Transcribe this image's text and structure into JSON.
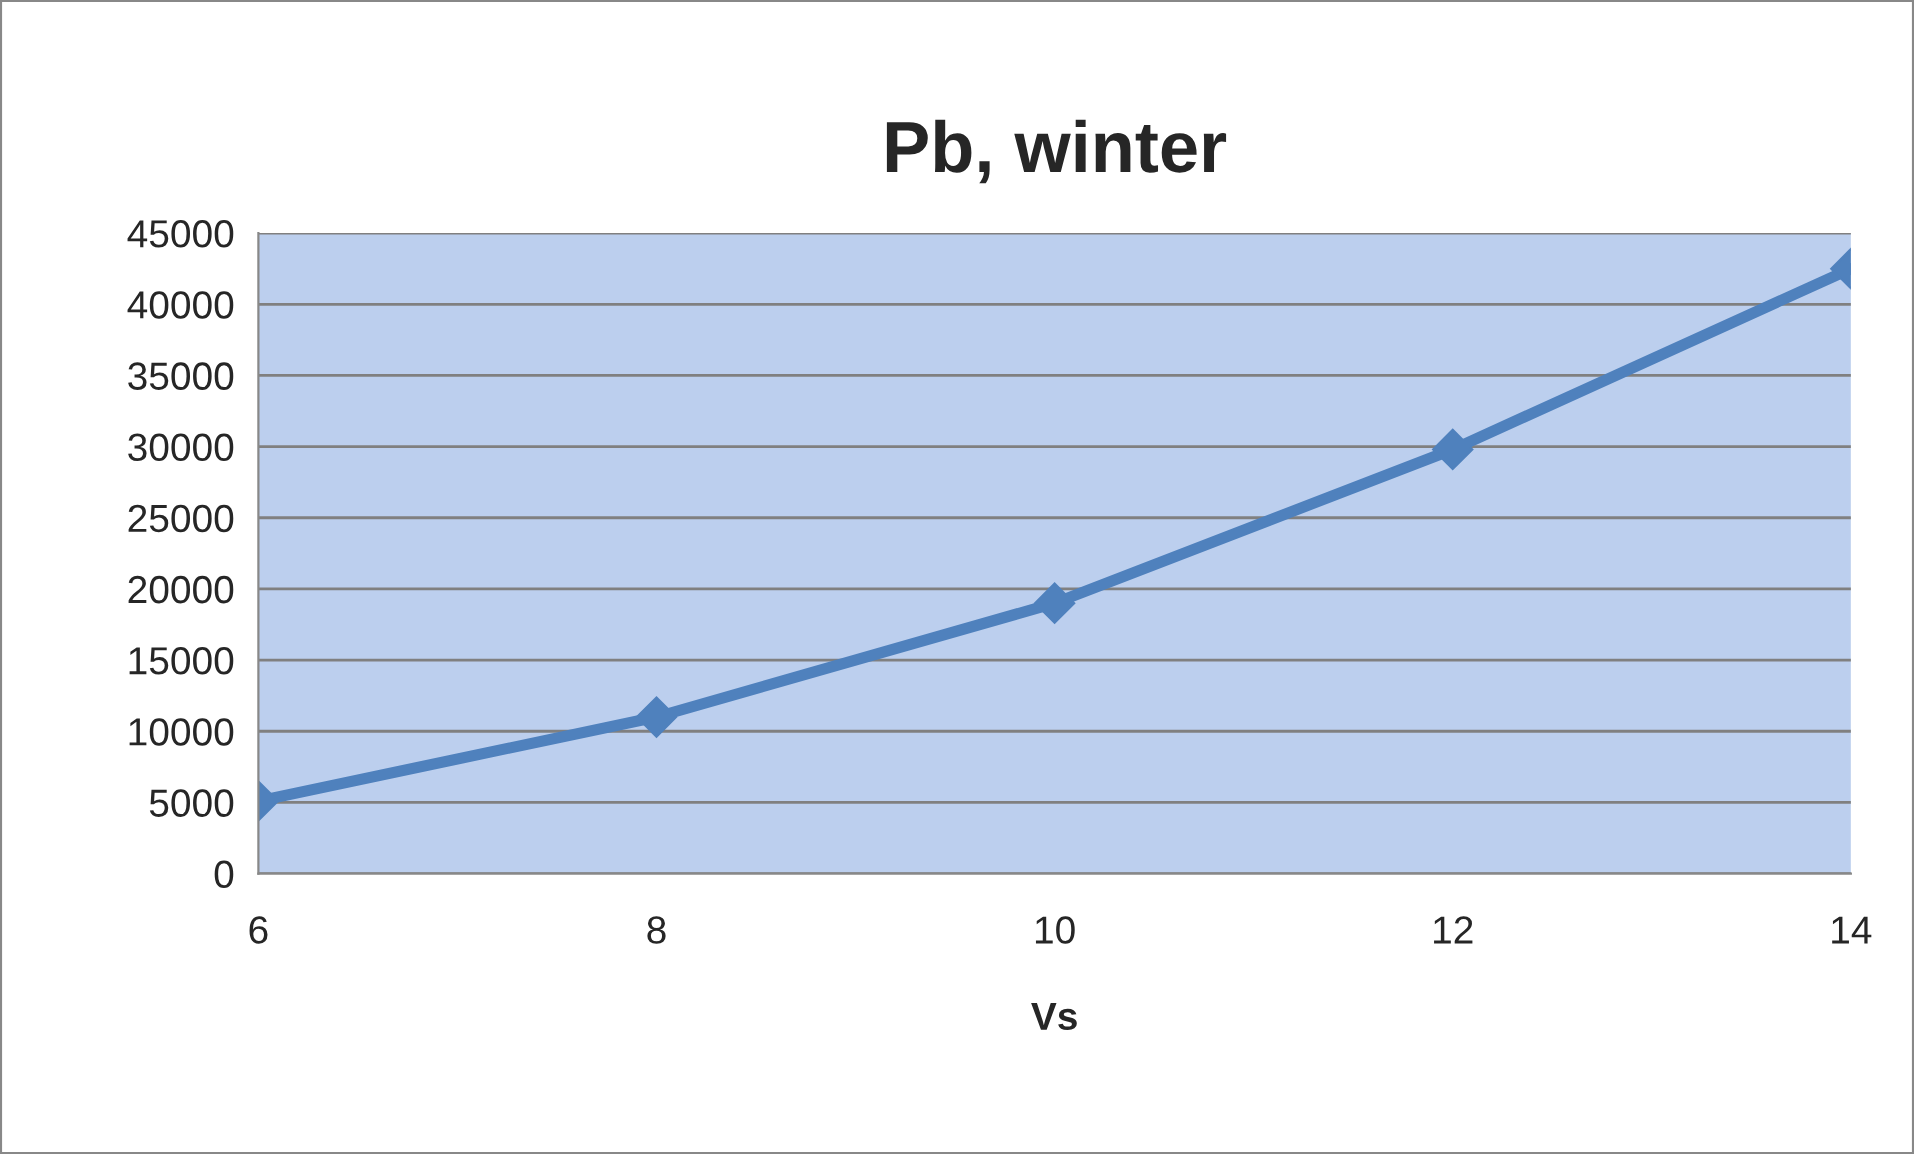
{
  "chart_data": {
    "type": "line",
    "title": "Pb, winter",
    "xlabel": "Vs",
    "x": [
      6,
      8,
      10,
      12,
      14
    ],
    "series": [
      {
        "color": "#4f81bd",
        "values": [
          5100,
          11000,
          19000,
          29800,
          42500
        ]
      }
    ],
    "xlim": [
      6,
      14
    ],
    "xticks": [
      6,
      8,
      10,
      12,
      14
    ],
    "ylim": [
      0,
      45000
    ],
    "yticks": [
      0,
      5000,
      10000,
      15000,
      20000,
      25000,
      30000,
      35000,
      40000,
      45000
    ],
    "grid": "y",
    "marker": "diamond",
    "line_style": "solid",
    "legend": false
  }
}
